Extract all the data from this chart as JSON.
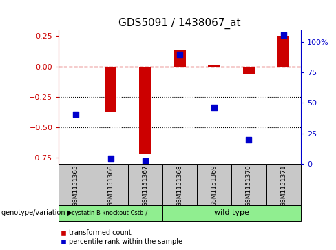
{
  "title": "GDS5091 / 1438067_at",
  "samples": [
    "GSM1151365",
    "GSM1151366",
    "GSM1151367",
    "GSM1151368",
    "GSM1151369",
    "GSM1151370",
    "GSM1151371"
  ],
  "red_values": [
    0.0,
    -0.37,
    -0.72,
    0.14,
    0.01,
    -0.06,
    0.25
  ],
  "blue_values_pct": [
    37,
    4,
    2,
    82,
    42,
    18,
    96
  ],
  "ylim_left": [
    -0.8,
    0.3
  ],
  "ylim_right": [
    0,
    110
  ],
  "yticks_left": [
    0.25,
    0.0,
    -0.25,
    -0.5,
    -0.75
  ],
  "yticks_right": [
    0,
    25,
    50,
    75,
    100
  ],
  "ytick_labels_right": [
    "0",
    "25",
    "50",
    "75",
    "100%"
  ],
  "hlines": [
    -0.25,
    -0.5
  ],
  "red_color": "#CC0000",
  "blue_color": "#0000CC",
  "bar_width": 0.35,
  "dot_size": 40,
  "title_fontsize": 11,
  "legend_red": "transformed count",
  "legend_blue": "percentile rank within the sample",
  "group_label": "genotype/variation",
  "group1_label": "cystatin B knockout Cstb-/-",
  "group2_label": "wild type",
  "group_color": "#90EE90",
  "sample_box_color": "#C8C8C8",
  "n_group1": 3,
  "n_group2": 4
}
